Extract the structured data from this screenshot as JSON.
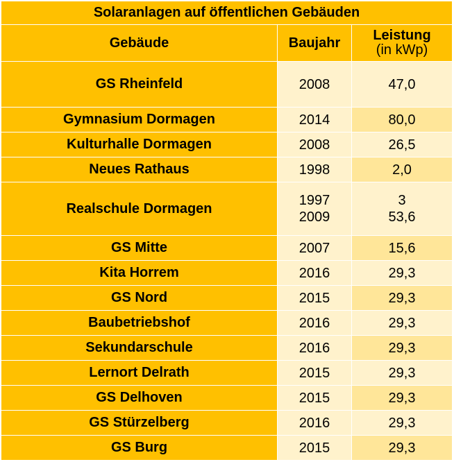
{
  "title": "Solaranlagen auf öffentlichen Gebäuden",
  "headers": {
    "building": "Gebäude",
    "year": "Baujahr",
    "power_line1": "Leistung",
    "power_line2": "(in kWp)"
  },
  "rows": [
    {
      "building": "GS Rheinfeld",
      "year": "2008",
      "year2": "",
      "power": "47,0",
      "power2": ""
    },
    {
      "building": "Gymnasium Dormagen",
      "year": "2014",
      "year2": "",
      "power": "80,0",
      "power2": ""
    },
    {
      "building": "Kulturhalle Dormagen",
      "year": "2008",
      "year2": "",
      "power": "26,5",
      "power2": ""
    },
    {
      "building": "Neues Rathaus",
      "year": "1998",
      "year2": "",
      "power": "2,0",
      "power2": ""
    },
    {
      "building": "Realschule Dormagen",
      "year": "1997",
      "year2": "2009",
      "power": "3",
      "power2": "53,6"
    },
    {
      "building": "GS Mitte",
      "year": "2007",
      "year2": "",
      "power": "15,6",
      "power2": ""
    },
    {
      "building": "Kita Horrem",
      "year": "2016",
      "year2": "",
      "power": "29,3",
      "power2": ""
    },
    {
      "building": "GS Nord",
      "year": "2015",
      "year2": "",
      "power": "29,3",
      "power2": ""
    },
    {
      "building": "Baubetriebshof",
      "year": "2016",
      "year2": "",
      "power": "29,3",
      "power2": ""
    },
    {
      "building": "Sekundarschule",
      "year": "2016",
      "year2": "",
      "power": "29,3",
      "power2": ""
    },
    {
      "building": "Lernort Delrath",
      "year": "2015",
      "year2": "",
      "power": "29,3",
      "power2": ""
    },
    {
      "building": "GS Delhoven",
      "year": "2015",
      "year2": "",
      "power": "29,3",
      "power2": ""
    },
    {
      "building": "GS Stürzelberg",
      "year": "2016",
      "year2": "",
      "power": "29,3",
      "power2": ""
    },
    {
      "building": "GS Burg",
      "year": "2015",
      "year2": "",
      "power": "29,3",
      "power2": ""
    }
  ],
  "colors": {
    "header_bg": "#ffc000",
    "row_light": "#fff2cc",
    "row_mid": "#ffe699"
  }
}
